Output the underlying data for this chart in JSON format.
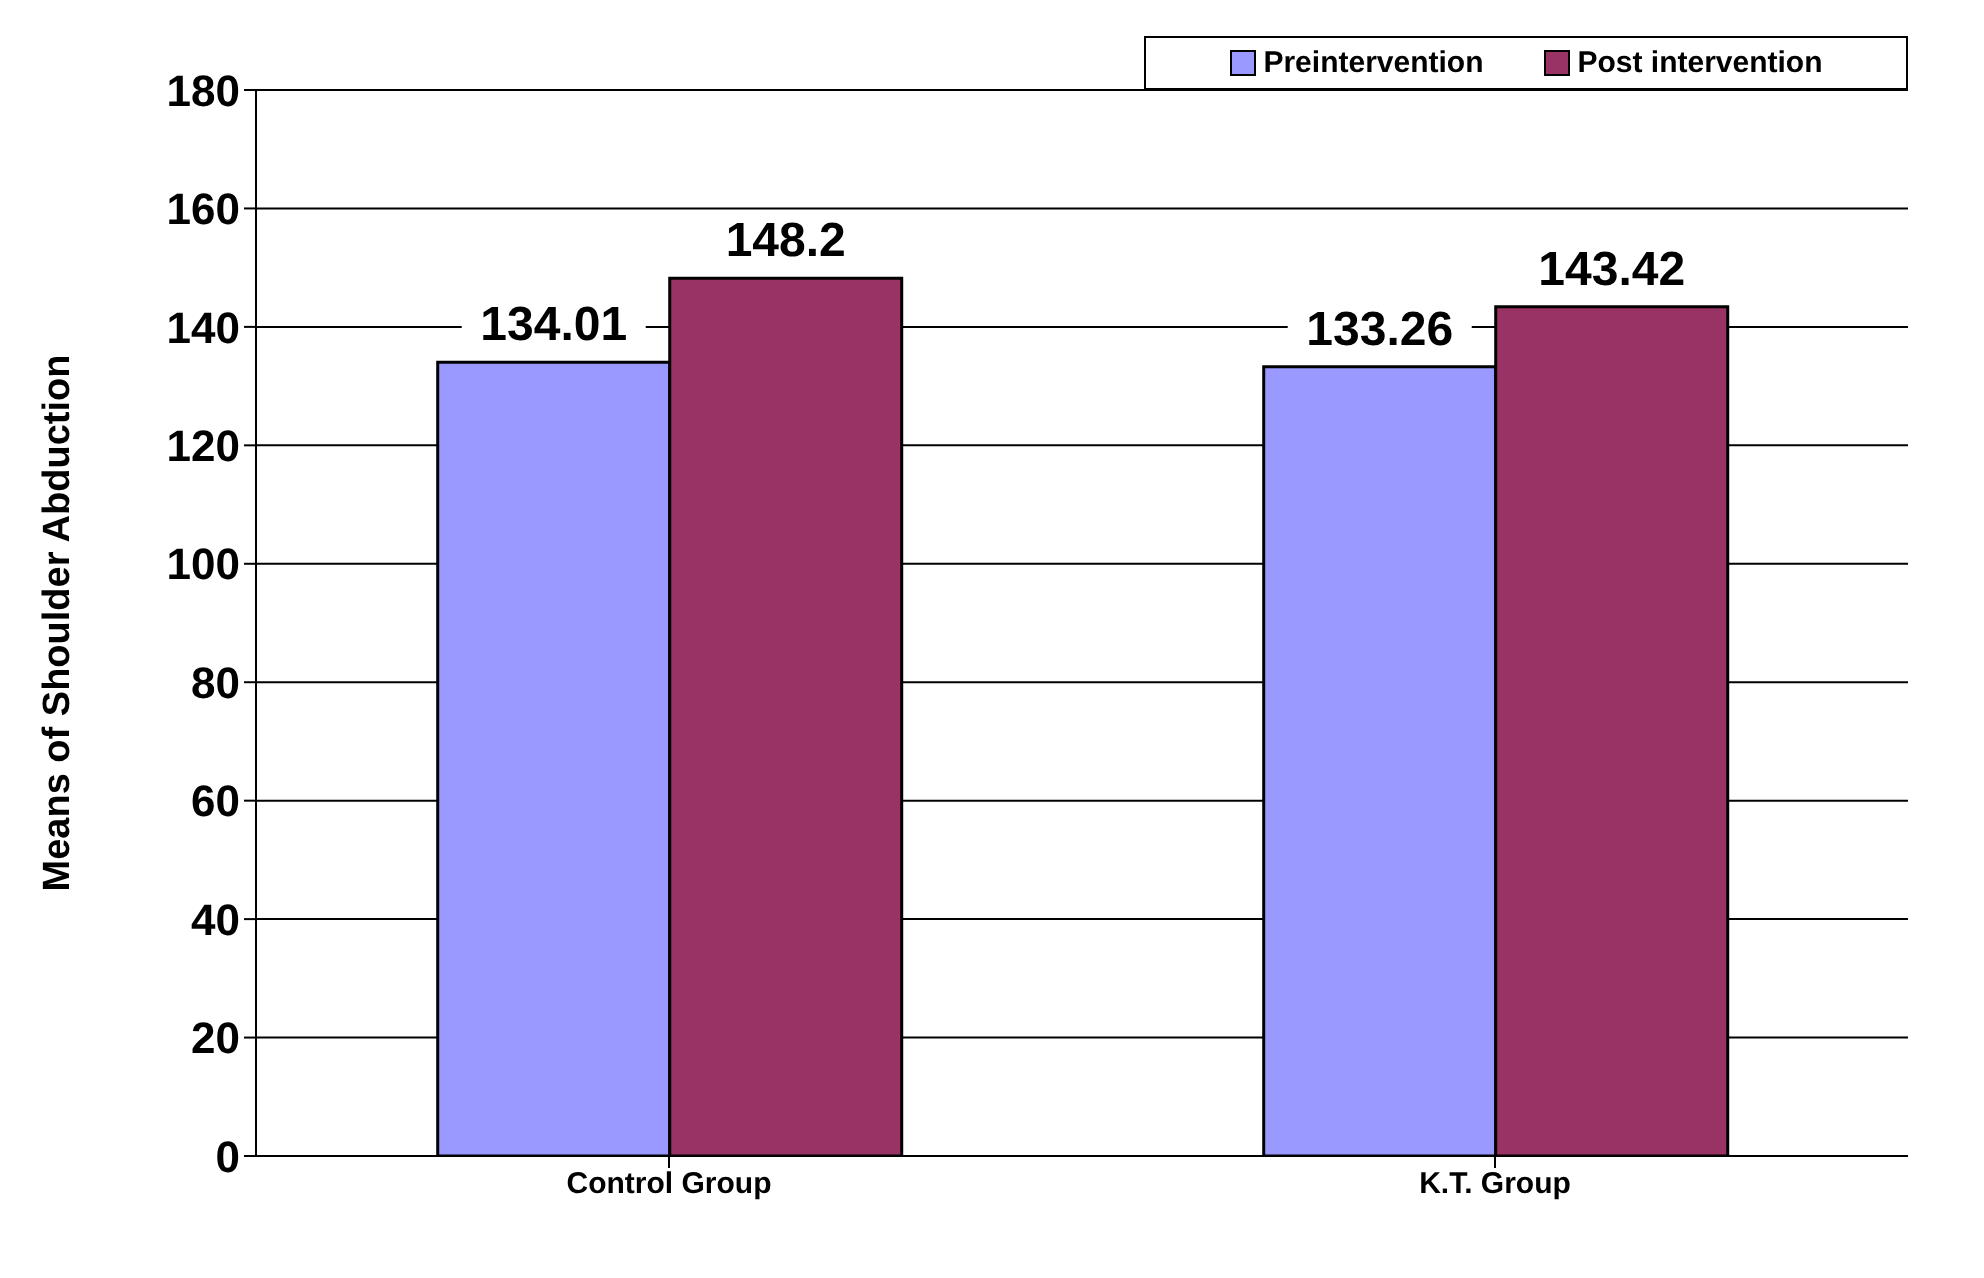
{
  "chart_data": {
    "type": "bar",
    "ylabel": "Means of Shoulder Abduction",
    "categories": [
      "Control Group",
      "K.T. Group"
    ],
    "series": [
      {
        "name": "Preintervention",
        "color": "#9999ff",
        "values": [
          134.01,
          133.26
        ]
      },
      {
        "name": "Post intervention",
        "color": "#993366",
        "values": [
          148.2,
          143.42
        ]
      }
    ],
    "ylim": [
      0,
      180
    ],
    "yticks": [
      0,
      20,
      40,
      60,
      80,
      100,
      120,
      140,
      160,
      180
    ],
    "grid": "y",
    "legend": "top right",
    "data_labels": true
  }
}
